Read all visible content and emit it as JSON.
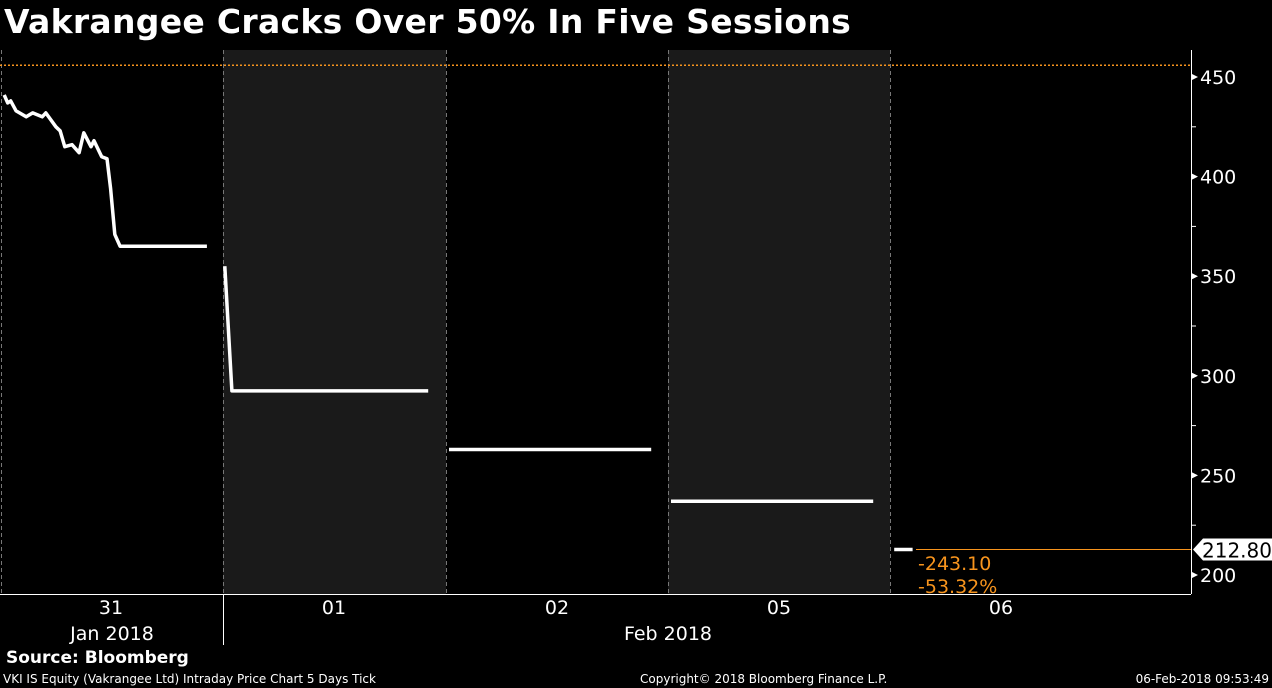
{
  "title": "Vakrangee Cracks Over 50% In Five Sessions",
  "source": "Source: Bloomberg",
  "footer": {
    "description": "VKI IS Equity (Vakrangee Ltd) Intraday Price Chart 5 Days  Tick",
    "copyright": "Copyright© 2018 Bloomberg Finance L.P.",
    "timestamp": "06-Feb-2018 09:53:49"
  },
  "colors": {
    "background": "#000000",
    "shaded_session": "#1a1a1a",
    "line": "#ffffff",
    "accent": "#f7941d"
  },
  "chart_data": {
    "type": "line",
    "title": "Vakrangee Cracks Over 50% In Five Sessions",
    "y_axis": {
      "position": "right",
      "ylim": [
        190,
        462
      ],
      "ticks": [
        200,
        250,
        300,
        350,
        400,
        450
      ],
      "tick_labels": [
        "200",
        "250",
        "300",
        "350",
        "400",
        "450"
      ]
    },
    "x_axis": {
      "sessions": [
        "31",
        "01",
        "02",
        "05",
        "06"
      ],
      "month_labels": [
        {
          "label": "Jan 2018",
          "sessions": [
            "31"
          ]
        },
        {
          "label": "Feb 2018",
          "sessions": [
            "01",
            "02",
            "05",
            "06"
          ]
        }
      ],
      "shaded_sessions": [
        "01",
        "05"
      ]
    },
    "previous_close": 455.9,
    "last_price": {
      "value": "212.80",
      "change": "-243.10",
      "change_pct": "-53.32%"
    },
    "series": [
      {
        "session": "31",
        "points": [
          [
            "09:22",
            441
          ],
          [
            "09:28",
            437
          ],
          [
            "09:33",
            438
          ],
          [
            "09:42",
            433
          ],
          [
            "09:59",
            430
          ],
          [
            "10:10",
            432
          ],
          [
            "10:26",
            430
          ],
          [
            "10:32",
            432
          ],
          [
            "10:49",
            425
          ],
          [
            "10:56",
            423
          ],
          [
            "11:04",
            415
          ],
          [
            "11:16",
            416
          ],
          [
            "11:28",
            412
          ],
          [
            "11:36",
            422
          ],
          [
            "11:48",
            415
          ],
          [
            "11:53",
            418
          ],
          [
            "12:06",
            410
          ],
          [
            "12:15",
            409
          ],
          [
            "12:21",
            394
          ],
          [
            "12:28",
            371
          ],
          [
            "12:37",
            365
          ],
          [
            "15:03",
            365
          ]
        ]
      },
      {
        "session": "01",
        "points": [
          [
            "09:18",
            355
          ],
          [
            "09:30",
            292.4
          ],
          [
            "15:00",
            292.4
          ]
        ]
      },
      {
        "session": "02",
        "points": [
          [
            "09:20",
            263
          ],
          [
            "15:00",
            263
          ]
        ]
      },
      {
        "session": "05",
        "points": [
          [
            "09:20",
            237
          ],
          [
            "15:00",
            237
          ]
        ]
      },
      {
        "session": "06",
        "points": [
          [
            "09:22",
            212.8
          ],
          [
            "09:53",
            212.8
          ]
        ]
      }
    ]
  }
}
